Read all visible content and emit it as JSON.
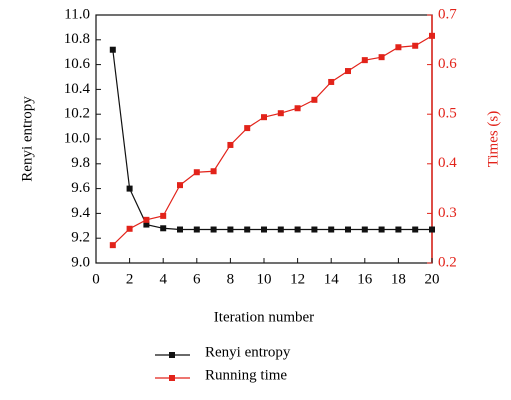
{
  "chart_data": {
    "type": "line",
    "x_label": "Iteration number",
    "y_label": "Renyi entropy",
    "y2_label": "Times (s)",
    "x": [
      1,
      2,
      3,
      4,
      5,
      6,
      7,
      8,
      9,
      10,
      11,
      12,
      13,
      14,
      15,
      16,
      17,
      18,
      19,
      20
    ],
    "series": [
      {
        "name": "Renyi entropy",
        "color": "#111111",
        "axis": "y",
        "values": [
          10.72,
          9.6,
          9.31,
          9.28,
          9.27,
          9.27,
          9.27,
          9.27,
          9.27,
          9.27,
          9.27,
          9.27,
          9.27,
          9.27,
          9.27,
          9.27,
          9.27,
          9.27,
          9.27,
          9.27
        ]
      },
      {
        "name": "Running time",
        "color": "#e2231a",
        "axis": "y2",
        "values": [
          0.236,
          0.269,
          0.287,
          0.295,
          0.357,
          0.383,
          0.385,
          0.438,
          0.472,
          0.494,
          0.502,
          0.512,
          0.529,
          0.565,
          0.587,
          0.609,
          0.615,
          0.635,
          0.638,
          0.658
        ]
      }
    ],
    "xlim": [
      0,
      20
    ],
    "xticks": [
      0,
      2,
      4,
      6,
      8,
      10,
      12,
      14,
      16,
      18,
      20
    ],
    "ylim": [
      9.0,
      11.0
    ],
    "yticks": [
      {
        "value": 9.0,
        "label": "9.0"
      },
      9.2,
      9.4,
      9.6,
      9.8,
      {
        "value": 10.0,
        "label": "10.0"
      },
      10.2,
      10.4,
      10.6,
      10.8,
      {
        "value": 11.0,
        "label": "11.0"
      }
    ],
    "y2lim": [
      0.2,
      0.7
    ],
    "y2ticks": [
      0.2,
      0.3,
      0.4,
      0.5,
      0.6,
      0.7
    ],
    "legend": "bottom"
  }
}
